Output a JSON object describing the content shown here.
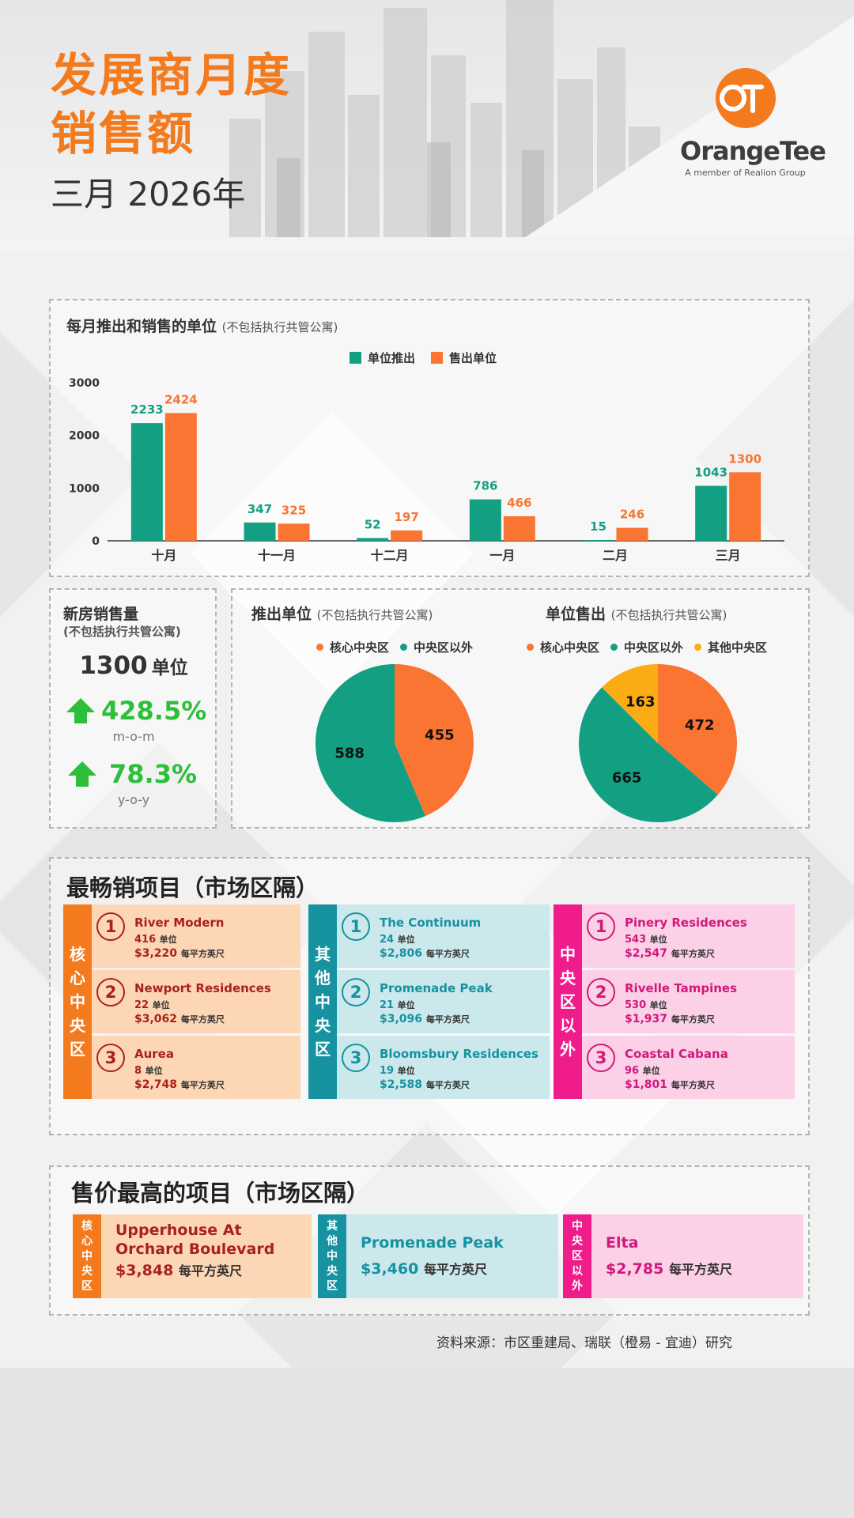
{
  "header": {
    "title_line1": "发展商月度",
    "title_line2": "销售额",
    "subtitle": "三月 2026年",
    "logo_name": "OrangeTee",
    "logo_tagline": "A member of Realion Group",
    "colors": {
      "accent": "#f47a1e"
    }
  },
  "bar_section": {
    "title": "每月推出和销售的单位",
    "note": "(不包括执行共管公寓)"
  },
  "new_sales": {
    "title": "新房销售量",
    "note": "(不包括执行共管公寓)",
    "units_value": "1300",
    "units_label": "单位",
    "mom_value": "428.5%",
    "mom_label": "m-o-m",
    "yoy_value": "78.3%",
    "yoy_label": "y-o-y"
  },
  "chart_data": [
    {
      "type": "bar",
      "title": "每月推出和销售的单位 (不包括执行共管公寓)",
      "categories": [
        "十月",
        "十一月",
        "十二月",
        "一月",
        "二月",
        "三月"
      ],
      "series": [
        {
          "name": "单位推出",
          "color": "#13a082",
          "values": [
            2233,
            347,
            52,
            786,
            15,
            1043
          ]
        },
        {
          "name": "售出单位",
          "color": "#fa7432",
          "values": [
            2424,
            325,
            197,
            466,
            246,
            1300
          ]
        }
      ],
      "yticks": [
        0,
        1000,
        2000,
        3000
      ],
      "ylim": [
        0,
        3000
      ],
      "legend": "top-center",
      "grid": false
    },
    {
      "type": "pie",
      "title": "推出单位",
      "note": "(不包括执行共管公寓)",
      "slices": [
        {
          "name": "核心中央区",
          "value": 455,
          "color": "#fa7432"
        },
        {
          "name": "中央区以外",
          "value": 588,
          "color": "#13a082"
        }
      ],
      "legend": "top"
    },
    {
      "type": "pie",
      "title": "单位售出",
      "note": "(不包括执行共管公寓)",
      "slices": [
        {
          "name": "核心中央区",
          "value": 472,
          "color": "#fa7432"
        },
        {
          "name": "中央区以外",
          "value": 665,
          "color": "#13a082"
        },
        {
          "name": "其他中央区",
          "value": 163,
          "color": "#fbac14"
        }
      ],
      "legend": "top"
    }
  ],
  "best_selling": {
    "title": "最畅销项目（市场区隔）",
    "unit_word": "单位",
    "psf_word": "每平方英尺",
    "columns": [
      {
        "tag": "核心中央区",
        "color": "#f47a1e",
        "text_color": "#a8221a",
        "bg": "#fdd6b6",
        "items": [
          {
            "rank": "1",
            "name": "River Modern",
            "units": "416",
            "psf": "$3,220"
          },
          {
            "rank": "2",
            "name": "Newport Residences",
            "units": "22",
            "psf": "$3,062"
          },
          {
            "rank": "3",
            "name": "Aurea",
            "units": "8",
            "psf": "$2,748"
          }
        ]
      },
      {
        "tag": "其他中央区",
        "color": "#1692a0",
        "text_color": "#1692a0",
        "bg": "#cbe8ec",
        "items": [
          {
            "rank": "1",
            "name": "The Continuum",
            "units": "24",
            "psf": "$2,806"
          },
          {
            "rank": "2",
            "name": "Promenade Peak",
            "units": "21",
            "psf": "$3,096"
          },
          {
            "rank": "3",
            "name": "Bloomsbury Residences",
            "units": "19",
            "psf": "$2,588"
          }
        ]
      },
      {
        "tag": "中央区以外",
        "color": "#f01c8c",
        "text_color": "#d1187b",
        "bg": "#fcd0e7",
        "items": [
          {
            "rank": "1",
            "name": "Pinery Residences",
            "units": "543",
            "psf": "$2,547"
          },
          {
            "rank": "2",
            "name": "Rivelle Tampines",
            "units": "530",
            "psf": "$1,937"
          },
          {
            "rank": "3",
            "name": "Coastal Cabana",
            "units": "96",
            "psf": "$1,801"
          }
        ]
      }
    ]
  },
  "highest_price": {
    "title": "售价最高的项目（市场区隔）",
    "psf_word": "每平方英尺",
    "items": [
      {
        "tag": "核心中央区",
        "name_line1": "Upperhouse At",
        "name_line2": "Orchard Boulevard",
        "price": "$3,848",
        "color": "#f47a1e",
        "text_color": "#a8221a",
        "bg": "#fdd6b6"
      },
      {
        "tag": "其他中央区",
        "name_line1": "Promenade Peak",
        "name_line2": "",
        "price": "$3,460",
        "color": "#1692a0",
        "text_color": "#1692a0",
        "bg": "#cbe8ec"
      },
      {
        "tag": "中央区以外",
        "name_line1": "Elta",
        "name_line2": "",
        "price": "$2,785",
        "color": "#f01c8c",
        "text_color": "#d1187b",
        "bg": "#fcd0e7"
      }
    ]
  },
  "source": "资料来源：市区重建局、瑞联（橙易 - 宜迪）研究"
}
